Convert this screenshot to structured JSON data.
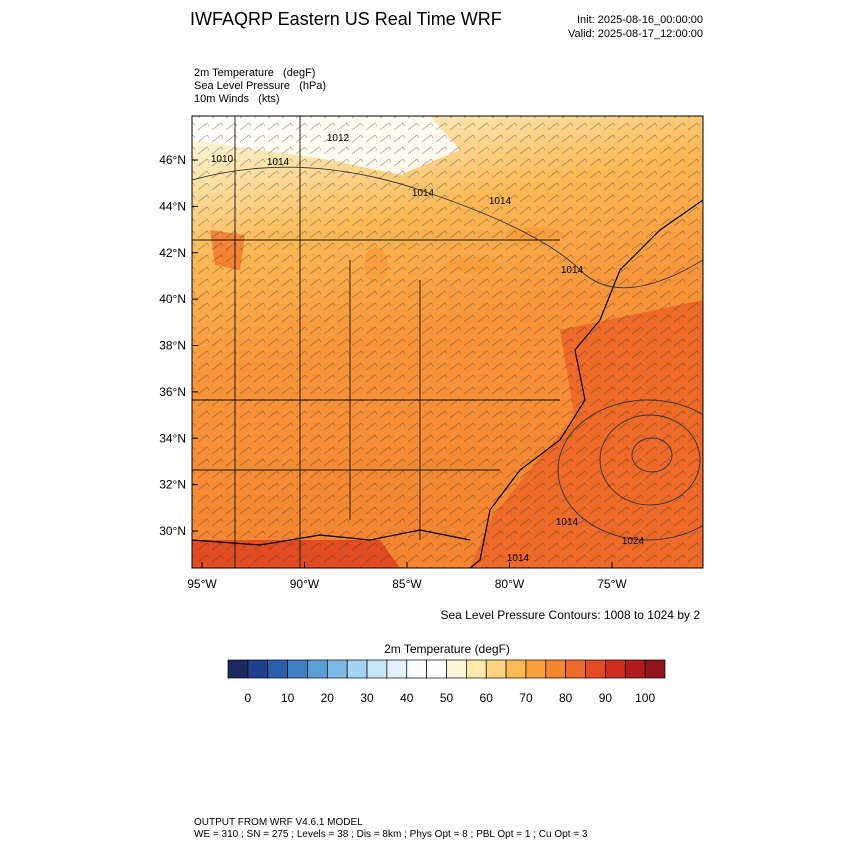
{
  "header": {
    "title": "IWFAQRP Eastern US Real Time WRF",
    "init": "Init: 2025-08-16_00:00:00",
    "valid": "Valid: 2025-08-17_12:00:00"
  },
  "fields": [
    "2m Temperature   (degF)",
    "Sea Level Pressure   (hPa)",
    "10m Winds   (kts)"
  ],
  "map": {
    "lat_ticks": [
      {
        "value": 46,
        "label": "46°N"
      },
      {
        "value": 44,
        "label": "44°N"
      },
      {
        "value": 42,
        "label": "42°N"
      },
      {
        "value": 40,
        "label": "40°N"
      },
      {
        "value": 38,
        "label": "38°N"
      },
      {
        "value": 36,
        "label": "36°N"
      },
      {
        "value": 34,
        "label": "34°N"
      },
      {
        "value": 32,
        "label": "32°N"
      },
      {
        "value": 30,
        "label": "30°N"
      }
    ],
    "lon_ticks": [
      {
        "value": -95,
        "label": "95°W"
      },
      {
        "value": -90,
        "label": "90°W"
      },
      {
        "value": -85,
        "label": "85°W"
      },
      {
        "value": -80,
        "label": "80°W"
      },
      {
        "value": -75,
        "label": "75°W"
      }
    ],
    "contour_labels": [
      "1010",
      "1014",
      "1012",
      "1014",
      "1014",
      "1014",
      "1014",
      "1024",
      "1014"
    ],
    "contour_note": "Sea Level Pressure Contours: 1008 to 1024 by 2"
  },
  "colorbar": {
    "title": "2m Temperature  (degF)",
    "ticks": [
      0,
      10,
      20,
      30,
      40,
      50,
      60,
      70,
      80,
      90,
      100
    ],
    "colors": [
      "#1a2a5e",
      "#1f3f8f",
      "#2b5fae",
      "#3f7fc4",
      "#5a9fd6",
      "#7dbbe6",
      "#a3d3f0",
      "#c6e5f7",
      "#e2f1fb",
      "#f7fbfe",
      "#ffffff",
      "#fff6d9",
      "#ffe9ae",
      "#fdd382",
      "#fdb955",
      "#fb9f3c",
      "#f7852f",
      "#ef6a28",
      "#e34b22",
      "#cf2d1e",
      "#b11b1c",
      "#8e1518"
    ]
  },
  "footer": [
    "OUTPUT FROM WRF V4.6.1 MODEL",
    "WE = 310 ; SN = 275 ; Levels = 38 ; Dis = 8km ; Phys Opt = 8 ; PBL Opt = 1 ; Cu Opt = 3"
  ]
}
